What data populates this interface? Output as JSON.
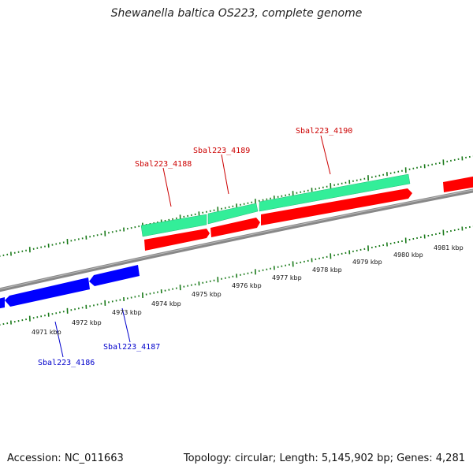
{
  "title": "Shewanella baltica OS223, complete genome",
  "footer": {
    "accession": "Accession: NC_011663",
    "summary": "Topology: circular; Length: 5,145,902 bp; Genes: 4,281"
  },
  "colors": {
    "forward_gene": "#ff0000",
    "reverse_gene": "#0000ff",
    "forward_feature": "#33ee99",
    "backbone": "#888888",
    "ticks": "#1a7a1a",
    "forward_label": "#cc0000",
    "reverse_label": "#0000cc"
  },
  "genes": [
    {
      "name": "Sbal223_4186",
      "strand": "reverse"
    },
    {
      "name": "Sbal223_4187",
      "strand": "reverse"
    },
    {
      "name": "Sbal223_4188",
      "strand": "forward"
    },
    {
      "name": "Sbal223_4189",
      "strand": "forward"
    },
    {
      "name": "Sbal223_4190",
      "strand": "forward"
    }
  ],
  "kbp_labels": [
    "4971 kbp",
    "4972 kbp",
    "4973 kbp",
    "4974 kbp",
    "4975 kbp",
    "4976 kbp",
    "4977 kbp",
    "4978 kbp",
    "4979 kbp",
    "4980 kbp",
    "4981 kbp"
  ]
}
